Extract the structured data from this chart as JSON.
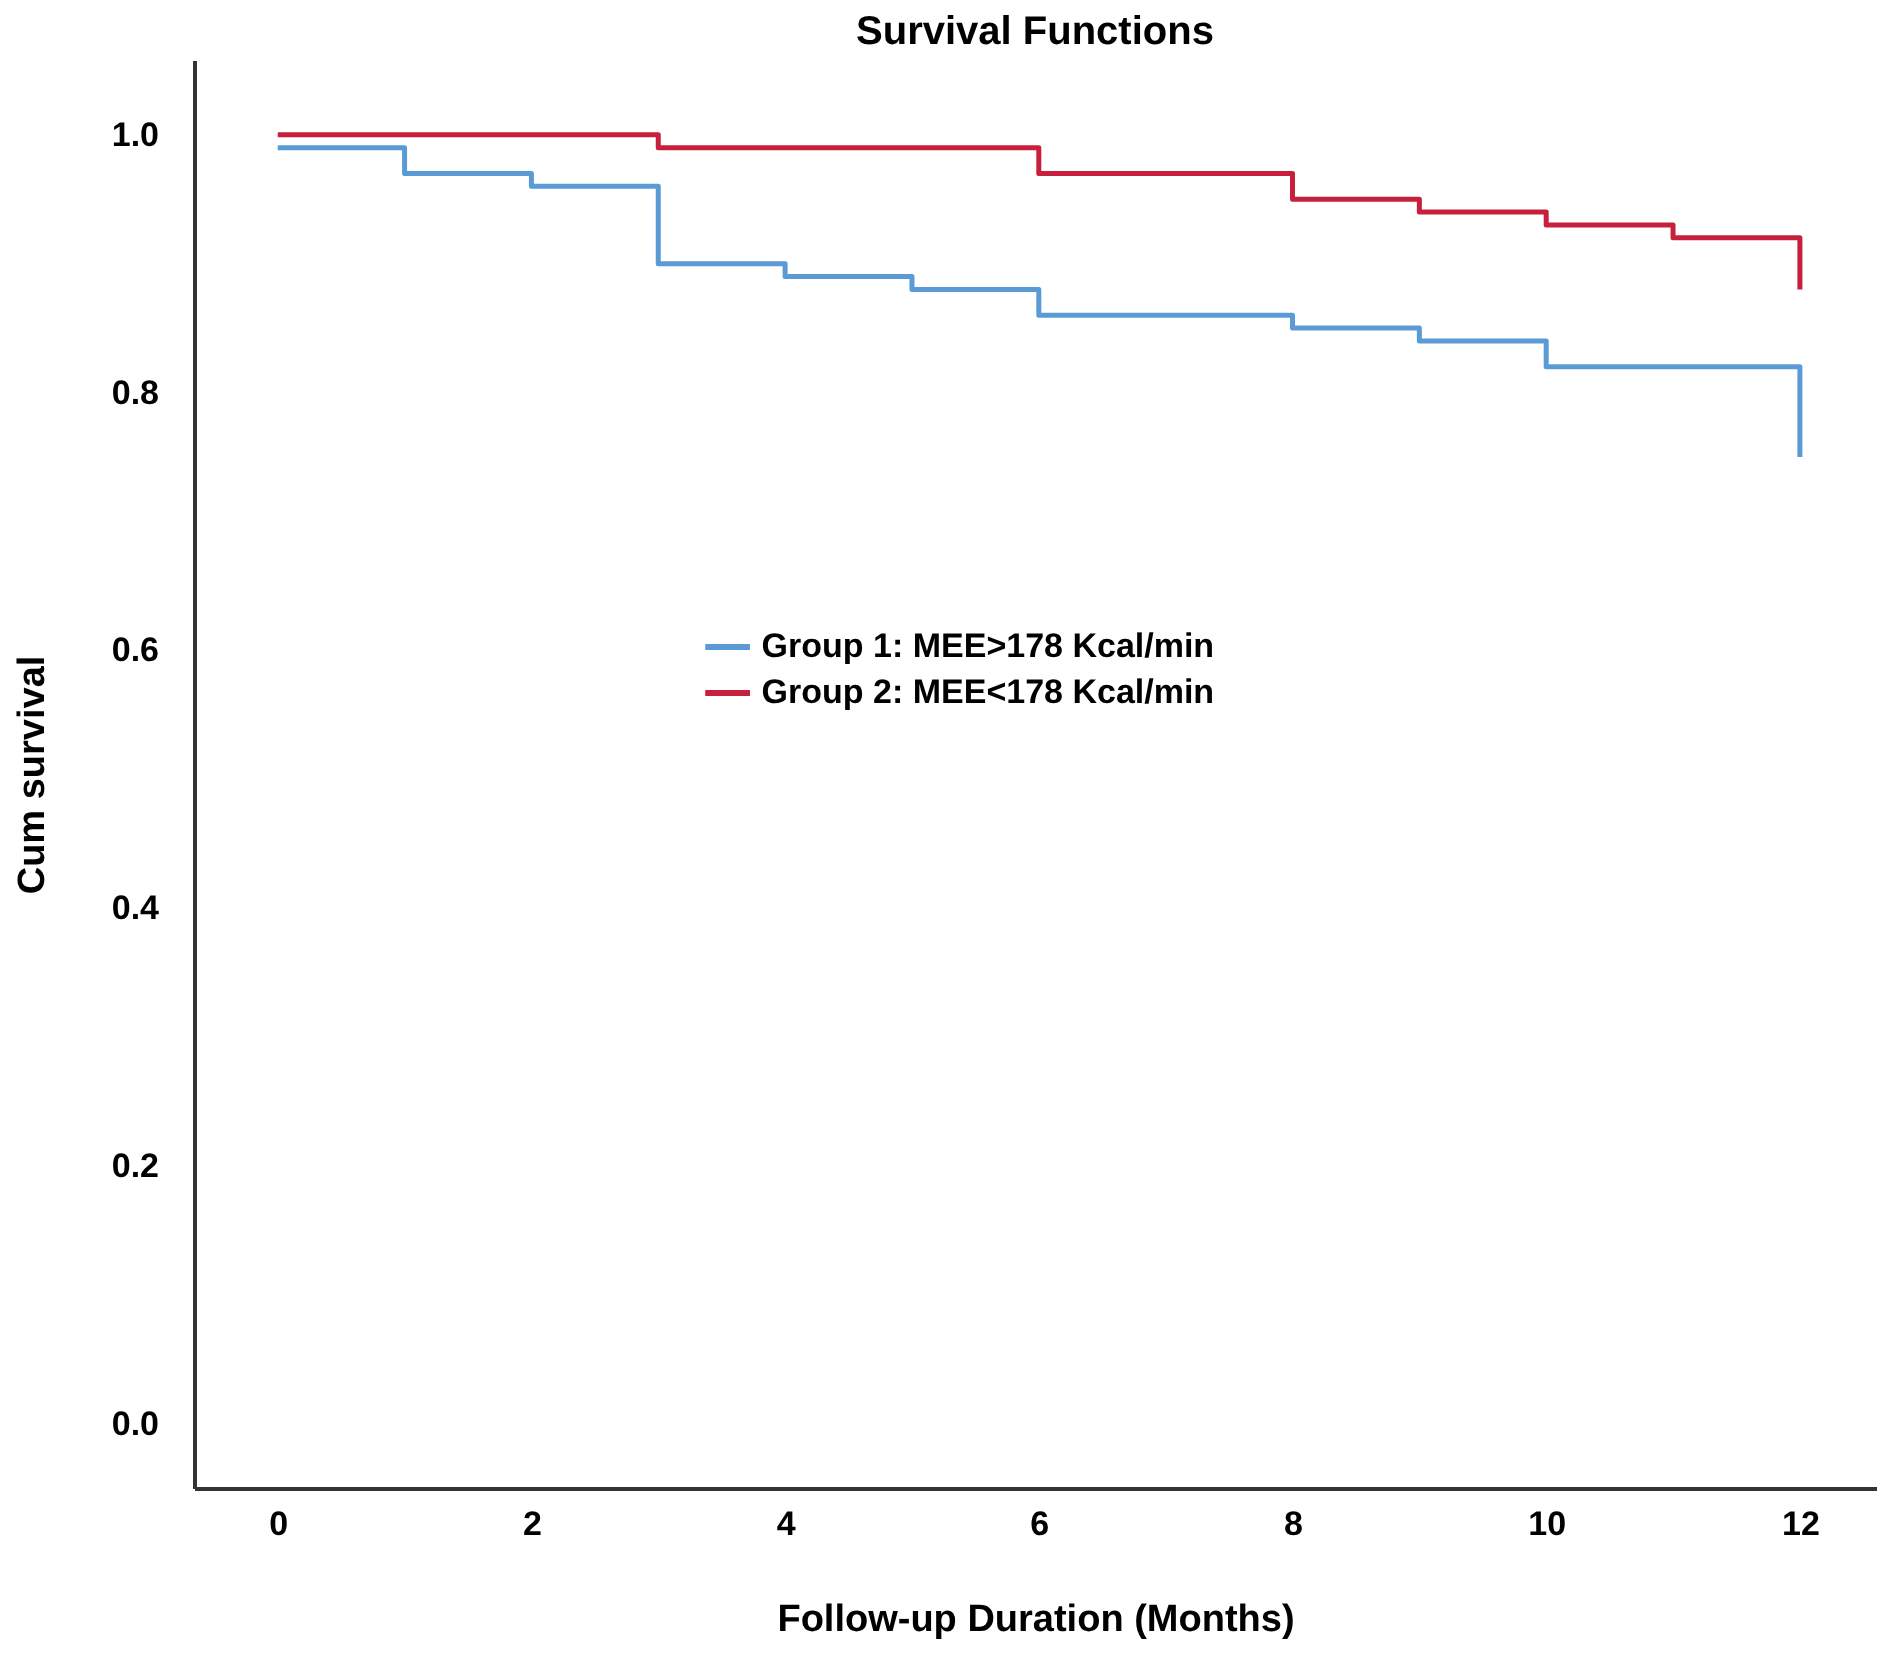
{
  "chart_data": {
    "type": "step",
    "title": "Survival Functions",
    "xlabel": "Follow-up Duration (Months)",
    "ylabel": "Cum survival",
    "xlim": [
      -0.66,
      12.6
    ],
    "xticks": [
      0,
      2,
      4,
      6,
      8,
      10,
      12
    ],
    "ylim": [
      -0.05,
      1.058
    ],
    "yticks": [
      {
        "value": 0,
        "label": "0.0"
      },
      0.2,
      0.4,
      0.6,
      0.8,
      {
        "value": 1,
        "label": "1.0"
      }
    ],
    "grid": false,
    "legend": "left",
    "line_style": "solid",
    "marker": "none",
    "series": [
      {
        "name": "Group 1: MEE>178 Kcal/min",
        "color": "#5b9bd5",
        "x": [
          0,
          1,
          2,
          3,
          4,
          5,
          6,
          8,
          9,
          10,
          12,
          12
        ],
        "values": [
          0.99,
          0.97,
          0.96,
          0.9,
          0.89,
          0.88,
          0.86,
          0.85,
          0.84,
          0.82,
          0.82,
          0.75
        ]
      },
      {
        "name": "Group 2: MEE<178 Kcal/min",
        "color": "#c8203c",
        "x": [
          0,
          3,
          6,
          7,
          8,
          9,
          10,
          11,
          12,
          12
        ],
        "values": [
          1.0,
          0.99,
          0.97,
          0.97,
          0.95,
          0.94,
          0.93,
          0.92,
          0.92,
          0.88
        ]
      }
    ]
  }
}
